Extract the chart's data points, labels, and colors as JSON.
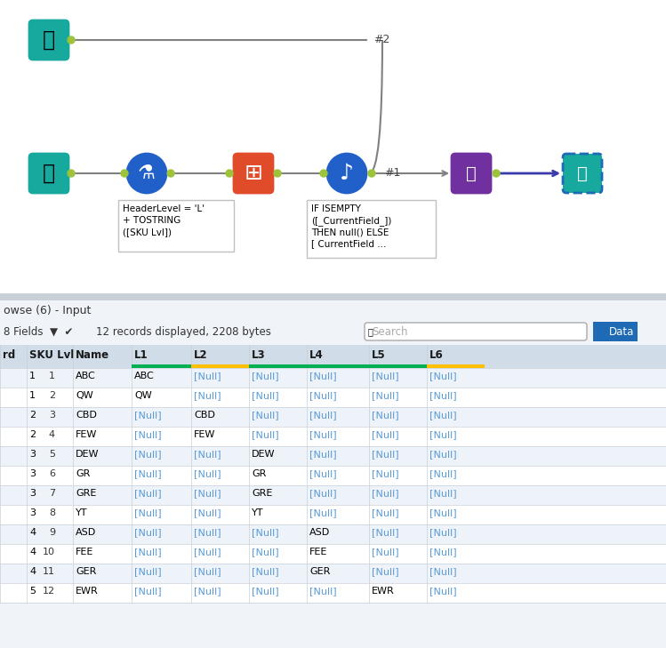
{
  "bg_color": "#ffffff",
  "workflow_bg": "#ffffff",
  "divider_color": "#c8c8c8",
  "table_header_bg": "#dce6f1",
  "table_row_bg_odd": "#eef3f9",
  "table_row_bg_even": "#ffffff",
  "toolbar_bg": "#f0f4f8",
  "columns": [
    "rd",
    "SKU Lvl",
    "Name",
    "L1",
    "L2",
    "L3",
    "L4",
    "L5",
    "L6"
  ],
  "col_header_colors": [
    "none",
    "none",
    "none",
    "green",
    "yellow",
    "green",
    "green",
    "green",
    "yellow"
  ],
  "rows": [
    [
      "1",
      "1",
      "ABC",
      "ABC",
      "[Null]",
      "[Null]",
      "[Null]",
      "[Null]",
      "[Null]"
    ],
    [
      "2",
      "1",
      "QW",
      "QW",
      "[Null]",
      "[Null]",
      "[Null]",
      "[Null]",
      "[Null]"
    ],
    [
      "3",
      "2",
      "CBD",
      "[Null]",
      "CBD",
      "[Null]",
      "[Null]",
      "[Null]",
      "[Null]"
    ],
    [
      "4",
      "2",
      "FEW",
      "[Null]",
      "FEW",
      "[Null]",
      "[Null]",
      "[Null]",
      "[Null]"
    ],
    [
      "5",
      "3",
      "DEW",
      "[Null]",
      "[Null]",
      "DEW",
      "[Null]",
      "[Null]",
      "[Null]"
    ],
    [
      "6",
      "3",
      "GR",
      "[Null]",
      "[Null]",
      "GR",
      "[Null]",
      "[Null]",
      "[Null]"
    ],
    [
      "7",
      "3",
      "GRE",
      "[Null]",
      "[Null]",
      "GRE",
      "[Null]",
      "[Null]",
      "[Null]"
    ],
    [
      "8",
      "3",
      "YT",
      "[Null]",
      "[Null]",
      "YT",
      "[Null]",
      "[Null]",
      "[Null]"
    ],
    [
      "9",
      "4",
      "ASD",
      "[Null]",
      "[Null]",
      "[Null]",
      "ASD",
      "[Null]",
      "[Null]"
    ],
    [
      "10",
      "4",
      "FEE",
      "[Null]",
      "[Null]",
      "[Null]",
      "FEE",
      "[Null]",
      "[Null]"
    ],
    [
      "11",
      "4",
      "GER",
      "[Null]",
      "[Null]",
      "[Null]",
      "GER",
      "[Null]",
      "[Null]"
    ],
    [
      "12",
      "5",
      "EWR",
      "[Null]",
      "[Null]",
      "[Null]",
      "[Null]",
      "EWR",
      "[Null]"
    ]
  ],
  "browse_label": "owse (6) - Input",
  "fields_label": "8 Fields",
  "records_label": "12 records displayed, 2208 bytes",
  "search_placeholder": "Search",
  "data_btn_color": "#1f6ab5",
  "null_color": "#5b9bd5",
  "normal_text_color": "#000000",
  "header_text_color": "#1a1a1a",
  "formula_text1": "HeaderLevel = 'L'\n+ TOSTRING\n([SKU Lvl])",
  "formula_text2": "IF ISEMPTY\n([_CurrentField_])\nTHEN null() ELSE\n[ CurrentField ..."
}
